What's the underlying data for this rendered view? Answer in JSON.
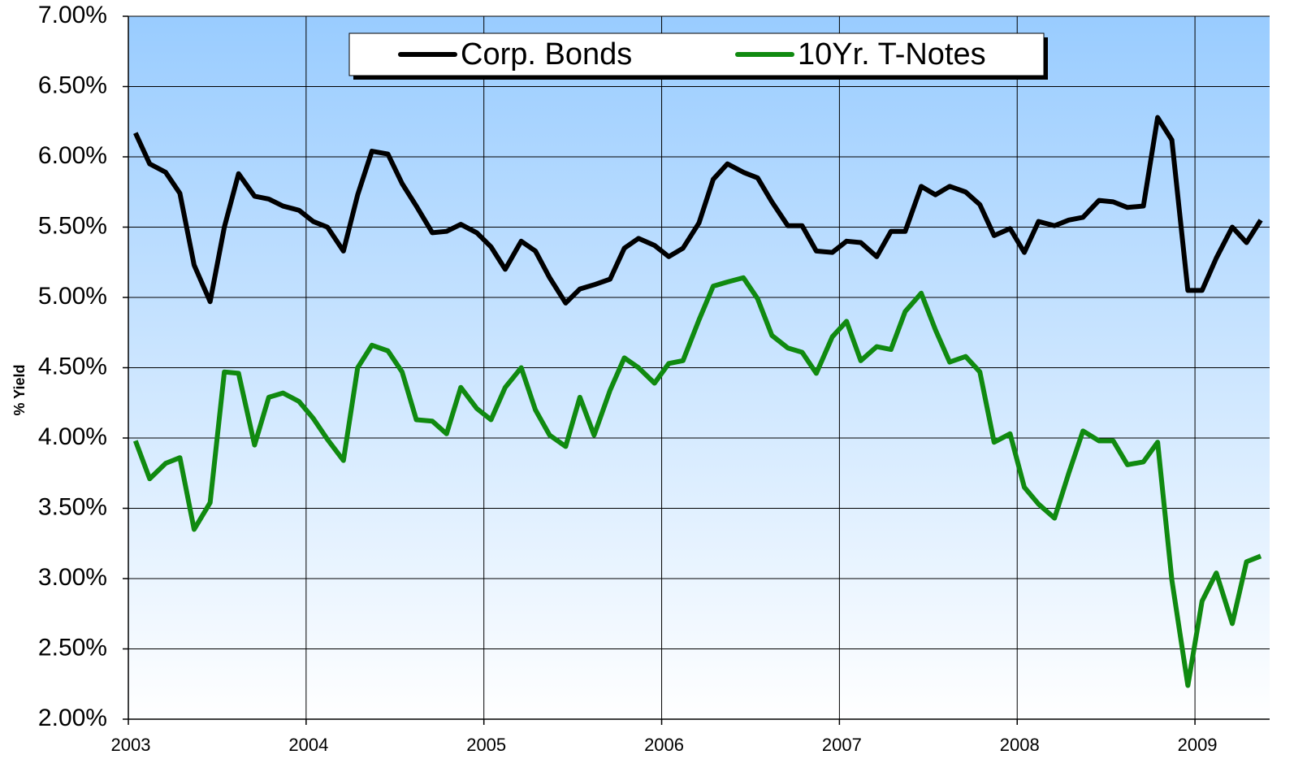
{
  "chart_data": {
    "type": "line",
    "ylabel": "% Yield",
    "x": [
      2003.04,
      2003.12,
      2003.21,
      2003.29,
      2003.37,
      2003.46,
      2003.54,
      2003.62,
      2003.71,
      2003.79,
      2003.87,
      2003.96,
      2004.04,
      2004.12,
      2004.21,
      2004.29,
      2004.37,
      2004.46,
      2004.54,
      2004.62,
      2004.71,
      2004.79,
      2004.87,
      2004.96,
      2005.04,
      2005.12,
      2005.21,
      2005.29,
      2005.37,
      2005.46,
      2005.54,
      2005.62,
      2005.71,
      2005.79,
      2005.87,
      2005.96,
      2006.04,
      2006.12,
      2006.21,
      2006.29,
      2006.37,
      2006.46,
      2006.54,
      2006.62,
      2006.71,
      2006.79,
      2006.87,
      2006.96,
      2007.04,
      2007.12,
      2007.21,
      2007.29,
      2007.37,
      2007.46,
      2007.54,
      2007.62,
      2007.71,
      2007.79,
      2007.87,
      2007.96,
      2008.04,
      2008.12,
      2008.21,
      2008.29,
      2008.37,
      2008.46,
      2008.54,
      2008.62,
      2008.71,
      2008.79,
      2008.87,
      2008.96,
      2009.04,
      2009.12,
      2009.21,
      2009.29,
      2009.37
    ],
    "series": [
      {
        "name": "Corp. Bonds",
        "color": "#000000",
        "values": [
          6.17,
          5.95,
          5.89,
          5.74,
          5.23,
          4.97,
          5.5,
          5.88,
          5.72,
          5.7,
          5.65,
          5.62,
          5.54,
          5.5,
          5.33,
          5.73,
          6.04,
          6.02,
          5.81,
          5.65,
          5.46,
          5.47,
          5.52,
          5.46,
          5.36,
          5.2,
          5.4,
          5.33,
          5.14,
          4.96,
          5.06,
          5.09,
          5.13,
          5.35,
          5.42,
          5.37,
          5.29,
          5.35,
          5.53,
          5.84,
          5.95,
          5.89,
          5.85,
          5.68,
          5.51,
          5.51,
          5.33,
          5.32,
          5.4,
          5.39,
          5.29,
          5.47,
          5.47,
          5.79,
          5.73,
          5.79,
          5.75,
          5.66,
          5.44,
          5.49,
          5.32,
          5.54,
          5.51,
          5.55,
          5.57,
          5.69,
          5.68,
          5.64,
          5.65,
          6.28,
          6.12,
          5.05,
          5.05,
          5.28,
          5.5,
          5.39,
          5.55
        ]
      },
      {
        "name": "10Yr. T-Notes",
        "color": "#108a10",
        "values": [
          3.98,
          3.71,
          3.82,
          3.86,
          3.35,
          3.54,
          4.47,
          4.46,
          3.95,
          4.29,
          4.32,
          4.26,
          4.14,
          3.99,
          3.84,
          4.5,
          4.66,
          4.62,
          4.47,
          4.13,
          4.12,
          4.03,
          4.36,
          4.21,
          4.13,
          4.36,
          4.5,
          4.2,
          4.02,
          3.94,
          4.29,
          4.02,
          4.34,
          4.57,
          4.5,
          4.39,
          4.53,
          4.55,
          4.84,
          5.08,
          5.11,
          5.14,
          4.99,
          4.73,
          4.64,
          4.61,
          4.46,
          4.72,
          4.83,
          4.55,
          4.65,
          4.63,
          4.9,
          5.03,
          4.77,
          4.54,
          4.58,
          4.47,
          3.97,
          4.03,
          3.65,
          3.53,
          3.43,
          3.75,
          4.05,
          3.98,
          3.98,
          3.81,
          3.83,
          3.97,
          2.99,
          2.24,
          2.84,
          3.04,
          2.68,
          3.12,
          3.16
        ]
      }
    ],
    "xlim": [
      2003,
      2009.42
    ],
    "xticks": [
      2003,
      2004,
      2005,
      2006,
      2007,
      2008,
      2009
    ],
    "ylim": [
      2,
      7
    ],
    "yticks": [
      {
        "value": 2,
        "label": "2.00%"
      },
      {
        "value": 2.5,
        "label": "2.50%"
      },
      {
        "value": 3,
        "label": "3.00%"
      },
      {
        "value": 3.5,
        "label": "3.50%"
      },
      {
        "value": 4,
        "label": "4.00%"
      },
      {
        "value": 4.5,
        "label": "4.50%"
      },
      {
        "value": 5,
        "label": "5.00%"
      },
      {
        "value": 5.5,
        "label": "5.50%"
      },
      {
        "value": 6,
        "label": "6.00%"
      },
      {
        "value": 6.5,
        "label": "6.50%"
      },
      {
        "value": 7,
        "label": "7.00%"
      }
    ],
    "grid": true,
    "legend": "top"
  }
}
